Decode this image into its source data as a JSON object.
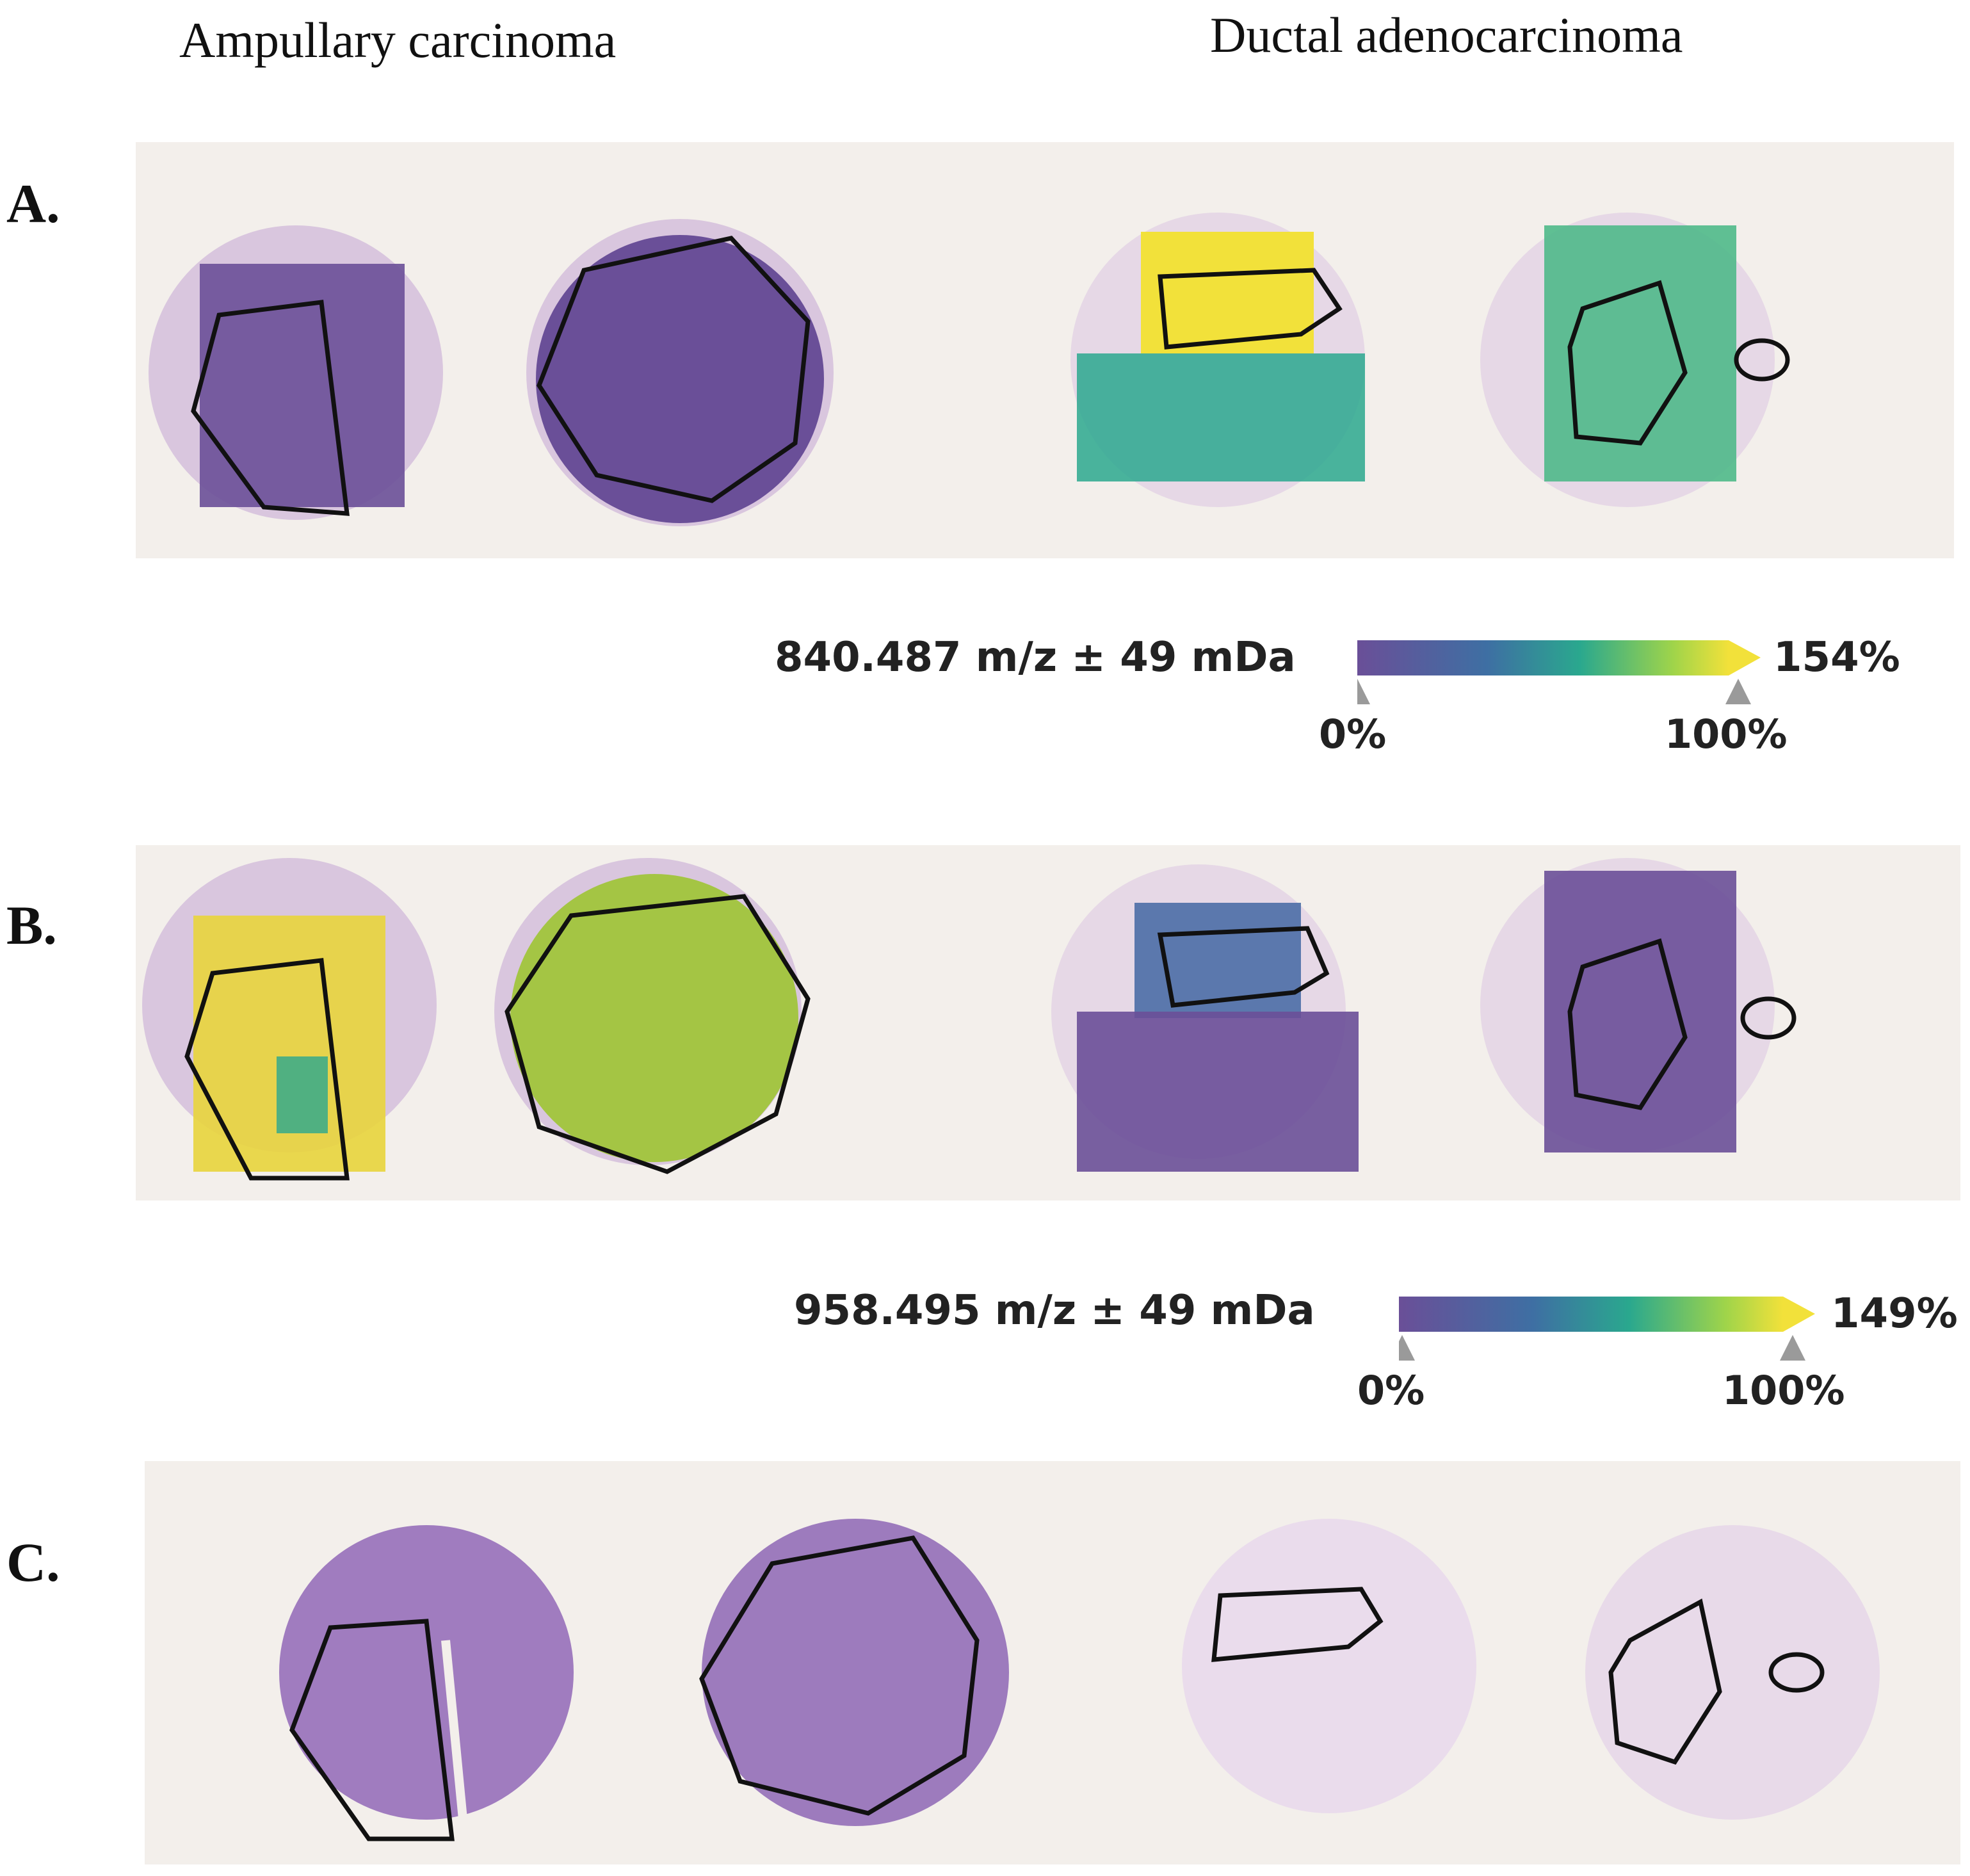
{
  "columns": {
    "left": "Ampullary carcinoma",
    "right": "Ductal adenocarcinoma"
  },
  "panels": [
    {
      "label": "A.",
      "samples": [
        "purple",
        "purple",
        "mixed-high",
        "mixed-mid"
      ]
    },
    {
      "label": "B.",
      "samples": [
        "mixed-high",
        "mixed-high",
        "purple-blue",
        "purple"
      ]
    },
    {
      "label": "C.",
      "samples": [
        "he-dark",
        "he-dark",
        "he-light",
        "he-light"
      ]
    }
  ],
  "colorbars": [
    {
      "title": "840.487 m/z ± 49 mDa",
      "max_label": "154%",
      "tick_min": "0%",
      "tick_max": "100%"
    },
    {
      "title": "958.495 m/z ± 49 mDa",
      "max_label": "149%",
      "tick_min": "0%",
      "tick_max": "100%"
    }
  ],
  "colors": {
    "background": "#f3efeb",
    "purple": "#6a4f98",
    "teal": "#2aa88e",
    "yellow": "#f2e13a",
    "outline": "#111111",
    "he_tissue": "#b38fcc",
    "marker": "#9a9a9a"
  }
}
